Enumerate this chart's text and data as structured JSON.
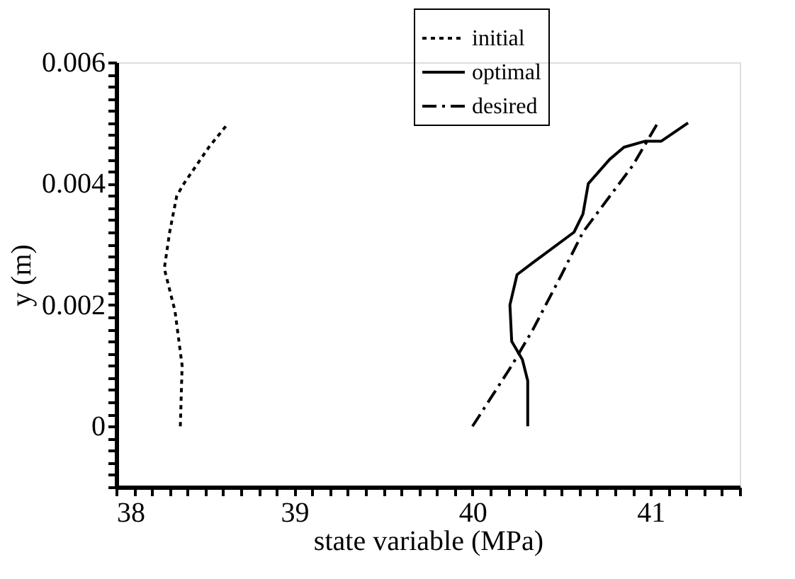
{
  "chart_data": {
    "type": "line",
    "xlabel": "state variable (MPa)",
    "ylabel": "y (m)",
    "xlim": [
      38,
      41.5
    ],
    "ylim": [
      -0.001,
      0.006
    ],
    "xticks": [
      38,
      {
        "value": 38.1,
        "label": null
      },
      {
        "value": 38.2,
        "label": null
      },
      {
        "value": 38.3,
        "label": null
      },
      {
        "value": 38.4,
        "label": null
      },
      {
        "value": 38.5,
        "label": null
      },
      {
        "value": 38.6,
        "label": null
      },
      {
        "value": 38.7,
        "label": null
      },
      {
        "value": 38.8,
        "label": null
      },
      {
        "value": 38.9,
        "label": null
      },
      39,
      {
        "value": 39.1,
        "label": null
      },
      {
        "value": 39.2,
        "label": null
      },
      {
        "value": 39.3,
        "label": null
      },
      {
        "value": 39.4,
        "label": null
      },
      {
        "value": 39.5,
        "label": null
      },
      {
        "value": 39.6,
        "label": null
      },
      {
        "value": 39.7,
        "label": null
      },
      {
        "value": 39.8,
        "label": null
      },
      {
        "value": 39.9,
        "label": null
      },
      40,
      {
        "value": 40.1,
        "label": null
      },
      {
        "value": 40.2,
        "label": null
      },
      {
        "value": 40.3,
        "label": null
      },
      {
        "value": 40.4,
        "label": null
      },
      {
        "value": 40.5,
        "label": null
      },
      {
        "value": 40.6,
        "label": null
      },
      {
        "value": 40.7,
        "label": null
      },
      {
        "value": 40.8,
        "label": null
      },
      {
        "value": 40.9,
        "label": null
      },
      41,
      {
        "value": 41.1,
        "label": null
      },
      {
        "value": 41.2,
        "label": null
      },
      {
        "value": 41.3,
        "label": null
      },
      {
        "value": 41.4,
        "label": null
      },
      {
        "value": 41.5,
        "label": null
      }
    ],
    "yticks": [
      {
        "value": -0.001,
        "label": null
      },
      {
        "value": -0.0008,
        "label": null
      },
      {
        "value": -0.0006,
        "label": null
      },
      {
        "value": -0.0004,
        "label": null
      },
      {
        "value": -0.0002,
        "label": null
      },
      0,
      {
        "value": 0.0002,
        "label": null
      },
      {
        "value": 0.0004,
        "label": null
      },
      {
        "value": 0.0006,
        "label": null
      },
      {
        "value": 0.0008,
        "label": null
      },
      {
        "value": 0.001,
        "label": null
      },
      {
        "value": 0.0012,
        "label": null
      },
      {
        "value": 0.0014,
        "label": null
      },
      {
        "value": 0.0016,
        "label": null
      },
      {
        "value": 0.0018,
        "label": null
      },
      0.002,
      {
        "value": 0.0022,
        "label": null
      },
      {
        "value": 0.0024,
        "label": null
      },
      {
        "value": 0.0026,
        "label": null
      },
      {
        "value": 0.0028,
        "label": null
      },
      {
        "value": 0.003,
        "label": null
      },
      {
        "value": 0.0032,
        "label": null
      },
      {
        "value": 0.0034,
        "label": null
      },
      {
        "value": 0.0036,
        "label": null
      },
      {
        "value": 0.0038,
        "label": null
      },
      0.004,
      {
        "value": 0.0042,
        "label": null
      },
      {
        "value": 0.0044,
        "label": null
      },
      {
        "value": 0.0046,
        "label": null
      },
      {
        "value": 0.0048,
        "label": null
      },
      {
        "value": 0.005,
        "label": null
      },
      {
        "value": 0.0052,
        "label": null
      },
      {
        "value": 0.0054,
        "label": null
      },
      {
        "value": 0.0056,
        "label": null
      },
      {
        "value": 0.0058,
        "label": null
      },
      0.006
    ],
    "grid": false,
    "legend": "top right",
    "marker": "none",
    "series": [
      {
        "name": "initial",
        "color": "#000000",
        "line_style": "dotted",
        "x": [
          38.36,
          38.37,
          38.33,
          38.27,
          38.3,
          38.34,
          38.38,
          38.45,
          38.52,
          38.63
        ],
        "values": [
          0,
          0.001,
          0.0019,
          0.0026,
          0.0032,
          0.0038,
          0.004,
          0.0043,
          0.0046,
          0.005
        ]
      },
      {
        "name": "optimal",
        "color": "#000000",
        "line_style": "solid",
        "x": [
          40.31,
          40.31,
          40.28,
          40.22,
          40.21,
          40.25,
          40.34,
          40.57,
          40.62,
          40.65,
          40.77,
          40.85,
          40.97,
          41.06,
          41.21
        ],
        "values": [
          0,
          0.00075,
          0.0011,
          0.0014,
          0.002,
          0.0025,
          0.0027,
          0.0032,
          0.0035,
          0.004,
          0.0044,
          0.0046,
          0.0047,
          0.0047,
          0.005
        ]
      },
      {
        "name": "desired",
        "color": "#000000",
        "line_style": "dashed",
        "x": [
          40.0,
          40.22,
          40.34,
          40.5,
          40.62,
          40.9,
          41.04
        ],
        "values": [
          0,
          0.001,
          0.0016,
          0.0025,
          0.0032,
          0.0043,
          0.005
        ]
      }
    ]
  }
}
